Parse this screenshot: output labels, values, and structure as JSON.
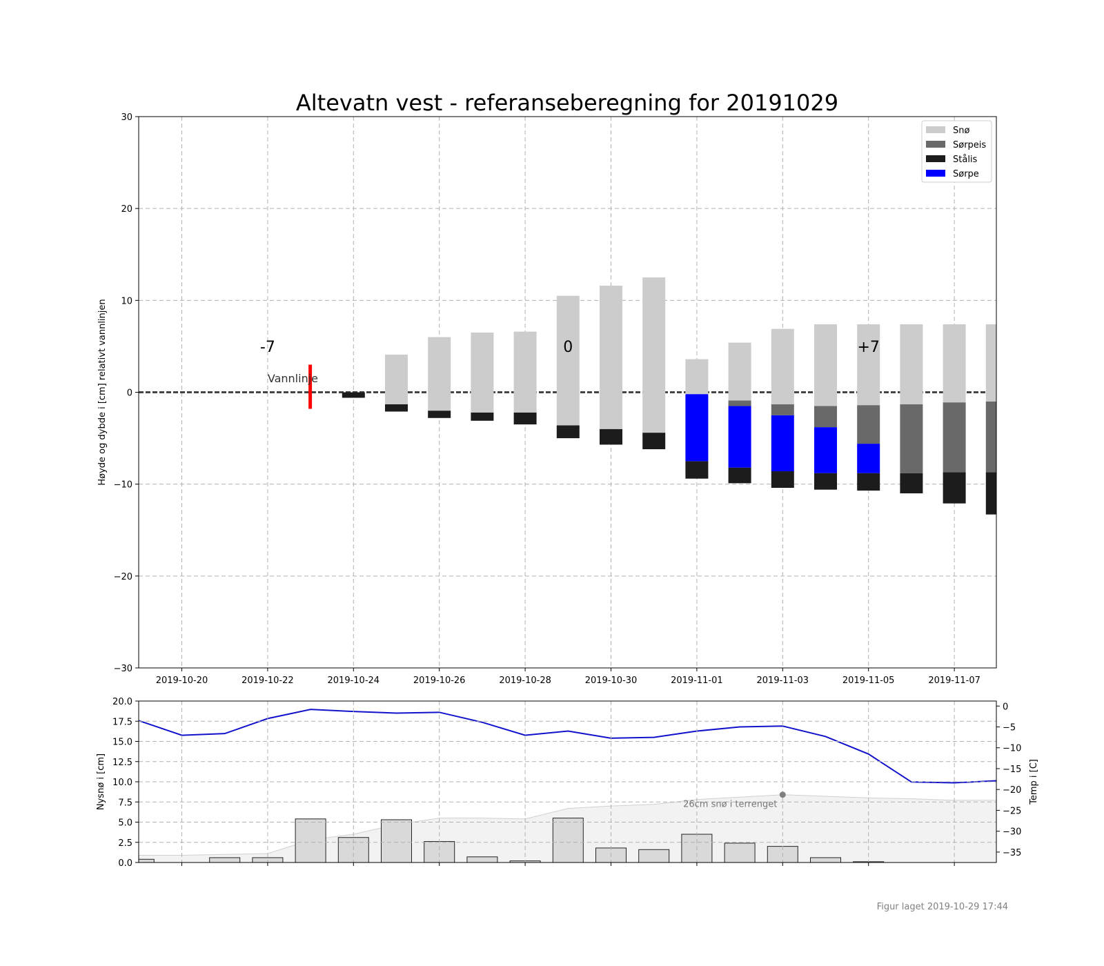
{
  "figure": {
    "footer": "Figur laget 2019-10-29 17:44"
  },
  "colors": {
    "sno": "#cccccc",
    "sorpeis": "#696969",
    "stalis": "#1c1c1c",
    "sorpe": "#0000ff",
    "temp_line": "#1111cc",
    "vannlinje_marker": "#ff0000"
  },
  "chart_data": [
    {
      "type": "bar",
      "title": "Altevatn vest - referanseberegning for 20191029",
      "ylabel": "Høyde og dybde i [cm] relativt vannlinjen",
      "xlabel": "",
      "ylim": [
        -30,
        30
      ],
      "yticks": [
        -30,
        -20,
        -10,
        0,
        10,
        20,
        30
      ],
      "ytick_labels": [
        "−30",
        "−20",
        "−10",
        "0",
        "10",
        "20",
        "30"
      ],
      "xticks": [
        "2019-10-20",
        "2019-10-22",
        "2019-10-24",
        "2019-10-26",
        "2019-10-28",
        "2019-10-30",
        "2019-11-01",
        "2019-11-03",
        "2019-11-05",
        "2019-11-07"
      ],
      "grid": true,
      "legend_position": "top-right",
      "legend": [
        "Snø",
        "Sørpeis",
        "Stålis",
        "Sørpe"
      ],
      "annotations": {
        "day_markers": [
          {
            "label": "-7",
            "date": "2019-10-22"
          },
          {
            "label": "0",
            "date": "2019-10-29"
          },
          {
            "label": "+7",
            "date": "2019-11-05"
          }
        ],
        "waterline_label": "Vannlinje",
        "waterline_date": "2019-10-23"
      },
      "layers": [
        {
          "date": "2019-10-24",
          "stalis": [
            -0.6,
            0.0
          ]
        },
        {
          "date": "2019-10-25",
          "stalis": [
            -2.1,
            -1.3
          ],
          "sno": [
            -1.3,
            4.1
          ]
        },
        {
          "date": "2019-10-26",
          "stalis": [
            -2.8,
            -2.0
          ],
          "sno": [
            -2.0,
            6.0
          ]
        },
        {
          "date": "2019-10-27",
          "stalis": [
            -3.1,
            -2.2
          ],
          "sno": [
            -2.2,
            6.5
          ]
        },
        {
          "date": "2019-10-28",
          "stalis": [
            -3.5,
            -2.2
          ],
          "sno": [
            -2.2,
            6.6
          ]
        },
        {
          "date": "2019-10-29",
          "stalis": [
            -5.0,
            -3.6
          ],
          "sno": [
            -3.6,
            10.5
          ]
        },
        {
          "date": "2019-10-30",
          "stalis": [
            -5.7,
            -4.0
          ],
          "sno": [
            -4.0,
            11.6
          ]
        },
        {
          "date": "2019-10-31",
          "stalis": [
            -6.2,
            -4.4
          ],
          "sno": [
            -4.4,
            12.5
          ]
        },
        {
          "date": "2019-11-01",
          "stalis": [
            -9.4,
            -7.5
          ],
          "sorpe": [
            -7.5,
            -0.2
          ],
          "sno": [
            -0.2,
            3.6
          ]
        },
        {
          "date": "2019-11-02",
          "stalis": [
            -9.9,
            -8.2
          ],
          "sorpe": [
            -8.2,
            -1.5
          ],
          "sorpeis": [
            -1.5,
            -0.9
          ],
          "sno": [
            -0.9,
            5.4
          ]
        },
        {
          "date": "2019-11-03",
          "stalis": [
            -10.4,
            -8.6
          ],
          "sorpe": [
            -8.6,
            -2.5
          ],
          "sorpeis": [
            -2.5,
            -1.3
          ],
          "sno": [
            -1.3,
            6.9
          ]
        },
        {
          "date": "2019-11-04",
          "stalis": [
            -10.6,
            -8.8
          ],
          "sorpe": [
            -8.8,
            -3.8
          ],
          "sorpeis": [
            -3.8,
            -1.5
          ],
          "sno": [
            -1.5,
            7.4
          ]
        },
        {
          "date": "2019-11-05",
          "stalis": [
            -10.7,
            -8.8
          ],
          "sorpe": [
            -8.8,
            -5.6
          ],
          "sorpeis": [
            -5.6,
            -1.4
          ],
          "sno": [
            -1.4,
            7.4
          ]
        },
        {
          "date": "2019-11-06",
          "stalis": [
            -11.0,
            -8.8
          ],
          "sorpeis": [
            -8.8,
            -1.3
          ],
          "sno": [
            -1.3,
            7.4
          ]
        },
        {
          "date": "2019-11-07",
          "stalis": [
            -12.1,
            -8.7
          ],
          "sorpeis": [
            -8.7,
            -1.1
          ],
          "sno": [
            -1.1,
            7.4
          ]
        },
        {
          "date": "2019-11-08",
          "stalis": [
            -13.3,
            -8.7
          ],
          "sorpeis": [
            -8.7,
            -1.0
          ],
          "sno": [
            -1.0,
            7.4
          ]
        }
      ],
      "x_range": [
        "2019-10-19",
        "2019-11-08"
      ]
    },
    {
      "type": "bar",
      "title": "",
      "ylabel": "Nysnø i [cm]",
      "y2label": "Temp i [C]",
      "ylim": [
        0,
        20
      ],
      "y2lim": [
        -37.5,
        1.2
      ],
      "yticks": [
        0.0,
        2.5,
        5.0,
        7.5,
        10.0,
        12.5,
        15.0,
        17.5,
        20.0
      ],
      "ytick_labels": [
        "0.0",
        "2.5",
        "5.0",
        "7.5",
        "10.0",
        "12.5",
        "15.0",
        "17.5",
        "20.0"
      ],
      "y2ticks": [
        0,
        -5,
        -10,
        -15,
        -20,
        -25,
        -30,
        -35
      ],
      "y2tick_labels": [
        "0",
        "−5",
        "−10",
        "−15",
        "−20",
        "−25",
        "−30",
        "−35"
      ],
      "grid": true,
      "annotation": {
        "text": "26cm snø i terrenget",
        "date": "2019-11-03",
        "value": 8.4
      },
      "nysno": [
        {
          "date": "2019-10-19",
          "value": 0.4
        },
        {
          "date": "2019-10-21",
          "value": 0.6
        },
        {
          "date": "2019-10-22",
          "value": 0.6
        },
        {
          "date": "2019-10-23",
          "value": 5.4
        },
        {
          "date": "2019-10-24",
          "value": 3.1
        },
        {
          "date": "2019-10-25",
          "value": 5.3
        },
        {
          "date": "2019-10-26",
          "value": 2.6
        },
        {
          "date": "2019-10-27",
          "value": 0.7
        },
        {
          "date": "2019-10-28",
          "value": 0.2
        },
        {
          "date": "2019-10-29",
          "value": 5.5
        },
        {
          "date": "2019-10-30",
          "value": 1.8
        },
        {
          "date": "2019-10-31",
          "value": 1.6
        },
        {
          "date": "2019-11-01",
          "value": 3.5
        },
        {
          "date": "2019-11-02",
          "value": 2.4
        },
        {
          "date": "2019-11-03",
          "value": 2.0
        },
        {
          "date": "2019-11-04",
          "value": 0.6
        },
        {
          "date": "2019-11-05",
          "value": 0.1
        }
      ],
      "snow_on_ground": [
        {
          "date": "2019-10-19",
          "value": 0.9
        },
        {
          "date": "2019-10-20",
          "value": 0.9
        },
        {
          "date": "2019-10-21",
          "value": 1.0
        },
        {
          "date": "2019-10-22",
          "value": 1.1
        },
        {
          "date": "2019-10-23",
          "value": 2.8
        },
        {
          "date": "2019-10-24",
          "value": 3.5
        },
        {
          "date": "2019-10-25",
          "value": 4.7
        },
        {
          "date": "2019-10-26",
          "value": 5.5
        },
        {
          "date": "2019-10-27",
          "value": 5.5
        },
        {
          "date": "2019-10-28",
          "value": 5.4
        },
        {
          "date": "2019-10-29",
          "value": 6.7
        },
        {
          "date": "2019-10-30",
          "value": 7.0
        },
        {
          "date": "2019-10-31",
          "value": 7.2
        },
        {
          "date": "2019-11-01",
          "value": 7.8
        },
        {
          "date": "2019-11-02",
          "value": 8.1
        },
        {
          "date": "2019-11-03",
          "value": 8.4
        },
        {
          "date": "2019-11-04",
          "value": 8.2
        },
        {
          "date": "2019-11-05",
          "value": 8.0
        },
        {
          "date": "2019-11-06",
          "value": 7.9
        },
        {
          "date": "2019-11-07",
          "value": 7.7
        },
        {
          "date": "2019-11-08",
          "value": 7.7
        }
      ],
      "temperature": [
        {
          "date": "2019-10-19",
          "value": -3.5
        },
        {
          "date": "2019-10-20",
          "value": -7.0
        },
        {
          "date": "2019-10-21",
          "value": -6.6
        },
        {
          "date": "2019-10-22",
          "value": -3.0
        },
        {
          "date": "2019-10-23",
          "value": -0.8
        },
        {
          "date": "2019-10-24",
          "value": -1.3
        },
        {
          "date": "2019-10-25",
          "value": -1.7
        },
        {
          "date": "2019-10-26",
          "value": -1.5
        },
        {
          "date": "2019-10-27",
          "value": -3.9
        },
        {
          "date": "2019-10-28",
          "value": -7.0
        },
        {
          "date": "2019-10-29",
          "value": -6.0
        },
        {
          "date": "2019-10-30",
          "value": -7.7
        },
        {
          "date": "2019-10-31",
          "value": -7.5
        },
        {
          "date": "2019-11-01",
          "value": -6.0
        },
        {
          "date": "2019-11-02",
          "value": -5.0
        },
        {
          "date": "2019-11-03",
          "value": -4.8
        },
        {
          "date": "2019-11-04",
          "value": -7.3
        },
        {
          "date": "2019-11-05",
          "value": -11.5
        },
        {
          "date": "2019-11-06",
          "value": -18.2
        },
        {
          "date": "2019-11-07",
          "value": -18.4
        },
        {
          "date": "2019-11-08",
          "value": -17.9
        }
      ],
      "x_range": [
        "2019-10-19",
        "2019-11-08"
      ]
    }
  ]
}
